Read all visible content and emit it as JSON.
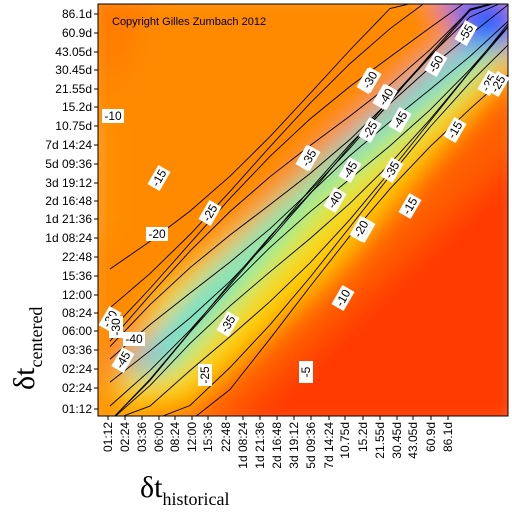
{
  "chart_data": {
    "type": "heatmap",
    "copyright": "Copyright Gilles Zumbach 2012",
    "xlabel": {
      "symbol": "δt",
      "subscript": "historical"
    },
    "ylabel": {
      "symbol": "δt",
      "subscript": "centered"
    },
    "x_ticks": [
      "01:12",
      "02:24",
      "03:36",
      "06:00",
      "08:24",
      "12:00",
      "15:36",
      "22:48",
      "1d 08:24",
      "1d 21:36",
      "2d 16:48",
      "3d 19:12",
      "5d 09:36",
      "7d 14:24",
      "10.75d",
      "15.2d",
      "21.55d",
      "30.45d",
      "43.05d",
      "60.9d",
      "86.1d"
    ],
    "y_ticks": [
      "01:12",
      "02:24",
      "02:24",
      "03:36",
      "06:00",
      "08:24",
      "12:00",
      "15:36",
      "22:48",
      "1d 08:24",
      "1d 21:36",
      "2d 16:48",
      "3d 19:12",
      "5d 09:36",
      "7d 14:24",
      "10.75d",
      "15.2d",
      "21.55d",
      "30.45d",
      "43.05d",
      "60.9d",
      "86.1d"
    ],
    "contour_levels": [
      -55,
      -50,
      -45,
      -40,
      -35,
      -30,
      -25,
      -20,
      -15,
      -10,
      -5
    ],
    "color_scale": {
      "low": "#1a4dff",
      "mid_low": "#3cd0ff",
      "mid": "#c8f04a",
      "mid_high": "#ffb020",
      "high": "#ff1a00"
    },
    "contour_labels": [
      {
        "text": "-55"
      },
      {
        "text": "-50"
      },
      {
        "text": "-45"
      },
      {
        "text": "-40"
      },
      {
        "text": "-35"
      },
      {
        "text": "-30"
      },
      {
        "text": "-25"
      },
      {
        "text": "-20"
      },
      {
        "text": "-15"
      },
      {
        "text": "-10"
      },
      {
        "text": "-5"
      },
      {
        "text": "-45"
      },
      {
        "text": "-40"
      },
      {
        "text": "-35"
      },
      {
        "text": "-30"
      },
      {
        "text": "-25"
      },
      {
        "text": "-20"
      },
      {
        "text": "-15"
      },
      {
        "text": "-10"
      },
      {
        "text": "-25"
      },
      {
        "text": "-30"
      },
      {
        "text": "-40"
      },
      {
        "text": "-45"
      },
      {
        "text": "-35"
      },
      {
        "text": "-25"
      },
      {
        "text": "-15"
      },
      {
        "text": "-20"
      },
      {
        "text": "-45"
      },
      {
        "text": "-40"
      },
      {
        "text": "-30"
      },
      {
        "text": "-35"
      },
      {
        "text": "-25"
      }
    ]
  }
}
